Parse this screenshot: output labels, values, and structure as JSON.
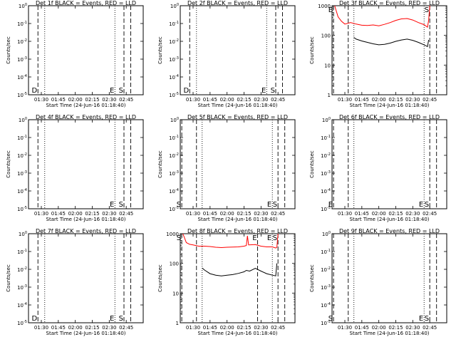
{
  "start_time_label": "Start Time (24-Jun-16 01:18:40)",
  "ylabel": "Counts/sec",
  "colors": {
    "events": "#000000",
    "lld": "#ff0000",
    "axis": "#000000",
    "background": "#ffffff"
  },
  "x_ticks": [
    "01:30",
    "01:45",
    "02:00",
    "02:15",
    "02:30",
    "02:45"
  ],
  "chart_data": [
    {
      "type": "line",
      "title": "Det 1f BLACK = Events, RED = LLD",
      "scale": "empty",
      "xlim": [
        "01:18:40",
        "03:00:00"
      ],
      "ytick_labels": [
        "10^0",
        "10^-1",
        "10^-2",
        "10^-3",
        "10^-4",
        "10^-5"
      ],
      "markers": [
        {
          "time": "01:27",
          "style": "dashed",
          "label": "D"
        },
        {
          "time": "01:33",
          "style": "dotted"
        },
        {
          "time": "02:35",
          "style": "dotted",
          "label": "E"
        },
        {
          "time": "02:43",
          "style": "dashed",
          "label": "S"
        },
        {
          "time": "02:49",
          "style": "dashed"
        }
      ],
      "series": []
    },
    {
      "type": "line",
      "title": "Det 2f BLACK = Events, RED = LLD",
      "scale": "empty",
      "xlim": [
        "01:18:40",
        "03:00:00"
      ],
      "ytick_labels": [
        "10^0",
        "10^-1",
        "10^-2",
        "10^-3",
        "10^-4",
        "10^-5"
      ],
      "markers": [
        {
          "time": "01:27",
          "style": "dashed",
          "label": "D"
        },
        {
          "time": "01:33",
          "style": "dotted"
        },
        {
          "time": "02:35",
          "style": "dotted",
          "label": "E"
        },
        {
          "time": "02:43",
          "style": "dashed",
          "label": "S"
        },
        {
          "time": "02:49",
          "style": "dashed"
        }
      ],
      "series": []
    },
    {
      "type": "line",
      "title": "Det 3f BLACK = Events, RED = LLD",
      "scale": "log",
      "xlim": [
        "01:18:40",
        "03:00:00"
      ],
      "ylim": [
        1,
        1000
      ],
      "ytick_labels": [
        "1000",
        "100",
        "10",
        "1"
      ],
      "markers": [
        {
          "time": "01:20",
          "style": "dashed",
          "label": "E"
        },
        {
          "time": "01:33",
          "style": "dashed"
        },
        {
          "time": "01:38",
          "style": "dotted"
        },
        {
          "time": "02:40",
          "style": "dotted"
        },
        {
          "time": "02:45",
          "style": "dashed",
          "label": "S"
        },
        {
          "time": "02:51",
          "style": "dashed"
        }
      ],
      "series": [
        {
          "color": "red",
          "x": [
            "01:21",
            "01:24",
            "01:27",
            "01:30",
            "01:35",
            "01:40",
            "01:45",
            "01:50",
            "01:55",
            "02:00",
            "02:05",
            "02:10",
            "02:15",
            "02:20",
            "02:25",
            "02:30",
            "02:35",
            "02:40",
            "02:43",
            "02:44",
            "02:45"
          ],
          "y": [
            1000,
            420,
            300,
            240,
            270,
            240,
            220,
            215,
            225,
            210,
            235,
            270,
            320,
            360,
            370,
            330,
            270,
            230,
            190,
            320,
            1000
          ]
        },
        {
          "color": "black",
          "x": [
            "01:38",
            "01:40",
            "01:45",
            "01:50",
            "01:55",
            "02:00",
            "02:05",
            "02:10",
            "02:15",
            "02:20",
            "02:25",
            "02:30",
            "02:35",
            "02:40",
            "02:43",
            "02:44"
          ],
          "y": [
            85,
            75,
            65,
            58,
            52,
            48,
            50,
            55,
            63,
            70,
            75,
            68,
            58,
            48,
            42,
            70
          ]
        }
      ]
    },
    {
      "type": "line",
      "title": "Det 4f BLACK = Events, RED = LLD",
      "scale": "empty",
      "xlim": [
        "01:18:40",
        "03:00:00"
      ],
      "ytick_labels": [
        "10^0",
        "10^-1",
        "10^-2",
        "10^-3",
        "10^-4",
        "10^-5"
      ],
      "markers": [
        {
          "time": "01:27",
          "style": "dashed"
        },
        {
          "time": "01:33",
          "style": "dotted"
        },
        {
          "time": "02:35",
          "style": "dotted",
          "label": "E"
        },
        {
          "time": "02:43",
          "style": "dashed",
          "label": "S"
        },
        {
          "time": "02:49",
          "style": "dashed"
        }
      ],
      "series": []
    },
    {
      "type": "line",
      "title": "Det 5f BLACK = Events, RED = LLD",
      "scale": "empty",
      "xlim": [
        "01:18:40",
        "03:00:00"
      ],
      "ytick_labels": [
        "10^0",
        "10^-1",
        "10^-2",
        "10^-3",
        "10^-4",
        "10^-5"
      ],
      "markers": [
        {
          "time": "01:20",
          "style": "dashed",
          "label": "S"
        },
        {
          "time": "01:33",
          "style": "dashed"
        },
        {
          "time": "01:38",
          "style": "dotted"
        },
        {
          "time": "02:40",
          "style": "dotted",
          "label": "E"
        },
        {
          "time": "02:45",
          "style": "dashed",
          "label": "S"
        },
        {
          "time": "02:51",
          "style": "dashed"
        }
      ],
      "series": []
    },
    {
      "type": "line",
      "title": "Det 6f BLACK = Events, RED = LLD",
      "scale": "empty",
      "xlim": [
        "01:18:40",
        "03:00:00"
      ],
      "ytick_labels": [
        "10^0",
        "10^-1",
        "10^-2",
        "10^-3",
        "10^-4",
        "10^-5"
      ],
      "markers": [
        {
          "time": "01:20",
          "style": "dashed",
          "label": "E"
        },
        {
          "time": "01:33",
          "style": "dashed"
        },
        {
          "time": "01:38",
          "style": "dotted"
        },
        {
          "time": "02:40",
          "style": "dotted",
          "label": "E"
        },
        {
          "time": "02:45",
          "style": "dashed",
          "label": "S"
        },
        {
          "time": "02:51",
          "style": "dashed"
        }
      ],
      "series": []
    },
    {
      "type": "line",
      "title": "Det 7f BLACK = Events, RED = LLD",
      "scale": "empty",
      "xlim": [
        "01:18:40",
        "03:00:00"
      ],
      "ytick_labels": [
        "10^0",
        "10^-1",
        "10^-2",
        "10^-3",
        "10^-4",
        "10^-5"
      ],
      "markers": [
        {
          "time": "01:27",
          "style": "dashed",
          "label": "D"
        },
        {
          "time": "01:33",
          "style": "dotted"
        },
        {
          "time": "02:35",
          "style": "dotted",
          "label": "E"
        },
        {
          "time": "02:43",
          "style": "dashed",
          "label": "S"
        },
        {
          "time": "02:49",
          "style": "dashed"
        }
      ],
      "series": []
    },
    {
      "type": "line",
      "title": "Det 8f BLACK = Events, RED = LLD",
      "scale": "log",
      "xlim": [
        "01:18:40",
        "03:00:00"
      ],
      "ylim": [
        1,
        1000
      ],
      "ytick_labels": [
        "1000",
        "100",
        "10",
        "1"
      ],
      "markers": [
        {
          "time": "01:20",
          "style": "dashed",
          "label": "S"
        },
        {
          "time": "01:33",
          "style": "dashed"
        },
        {
          "time": "01:38",
          "style": "dotted"
        },
        {
          "time": "02:27",
          "style": "dashed",
          "label": "E"
        },
        {
          "time": "02:40",
          "style": "dotted",
          "label": "E"
        },
        {
          "time": "02:45",
          "style": "dashed",
          "label": "S"
        },
        {
          "time": "02:51",
          "style": "dashed"
        }
      ],
      "series": [
        {
          "color": "red",
          "x": [
            "01:21",
            "01:24",
            "01:27",
            "01:30",
            "01:35",
            "01:40",
            "01:45",
            "01:50",
            "01:55",
            "02:00",
            "02:05",
            "02:10",
            "02:15",
            "02:17",
            "02:18",
            "02:19",
            "02:25",
            "02:30",
            "02:35",
            "02:40",
            "02:43",
            "02:44",
            "02:45"
          ],
          "y": [
            1000,
            500,
            440,
            420,
            380,
            380,
            370,
            350,
            340,
            350,
            355,
            360,
            380,
            400,
            850,
            420,
            430,
            380,
            360,
            360,
            330,
            350,
            1000
          ]
        },
        {
          "color": "black",
          "x": [
            "01:38",
            "01:40",
            "01:45",
            "01:50",
            "01:55",
            "02:00",
            "02:05",
            "02:10",
            "02:15",
            "02:17",
            "02:20",
            "02:25",
            "02:30",
            "02:35",
            "02:40",
            "02:43",
            "02:44"
          ],
          "y": [
            70,
            60,
            45,
            40,
            38,
            40,
            42,
            46,
            52,
            58,
            55,
            68,
            55,
            45,
            40,
            38,
            100
          ]
        }
      ]
    },
    {
      "type": "line",
      "title": "Det 9f BLACK = Events, RED = LLD",
      "scale": "empty",
      "xlim": [
        "01:18:40",
        "03:00:00"
      ],
      "ytick_labels": [
        "10^0",
        "10^-1",
        "10^-2",
        "10^-3",
        "10^-4",
        "10^-5"
      ],
      "markers": [
        {
          "time": "01:20",
          "style": "dashed",
          "label": "S"
        },
        {
          "time": "01:33",
          "style": "dashed"
        },
        {
          "time": "01:38",
          "style": "dotted"
        },
        {
          "time": "02:40",
          "style": "dotted",
          "label": "E"
        },
        {
          "time": "02:45",
          "style": "dashed",
          "label": "S"
        },
        {
          "time": "02:51",
          "style": "dashed"
        }
      ],
      "series": []
    }
  ]
}
